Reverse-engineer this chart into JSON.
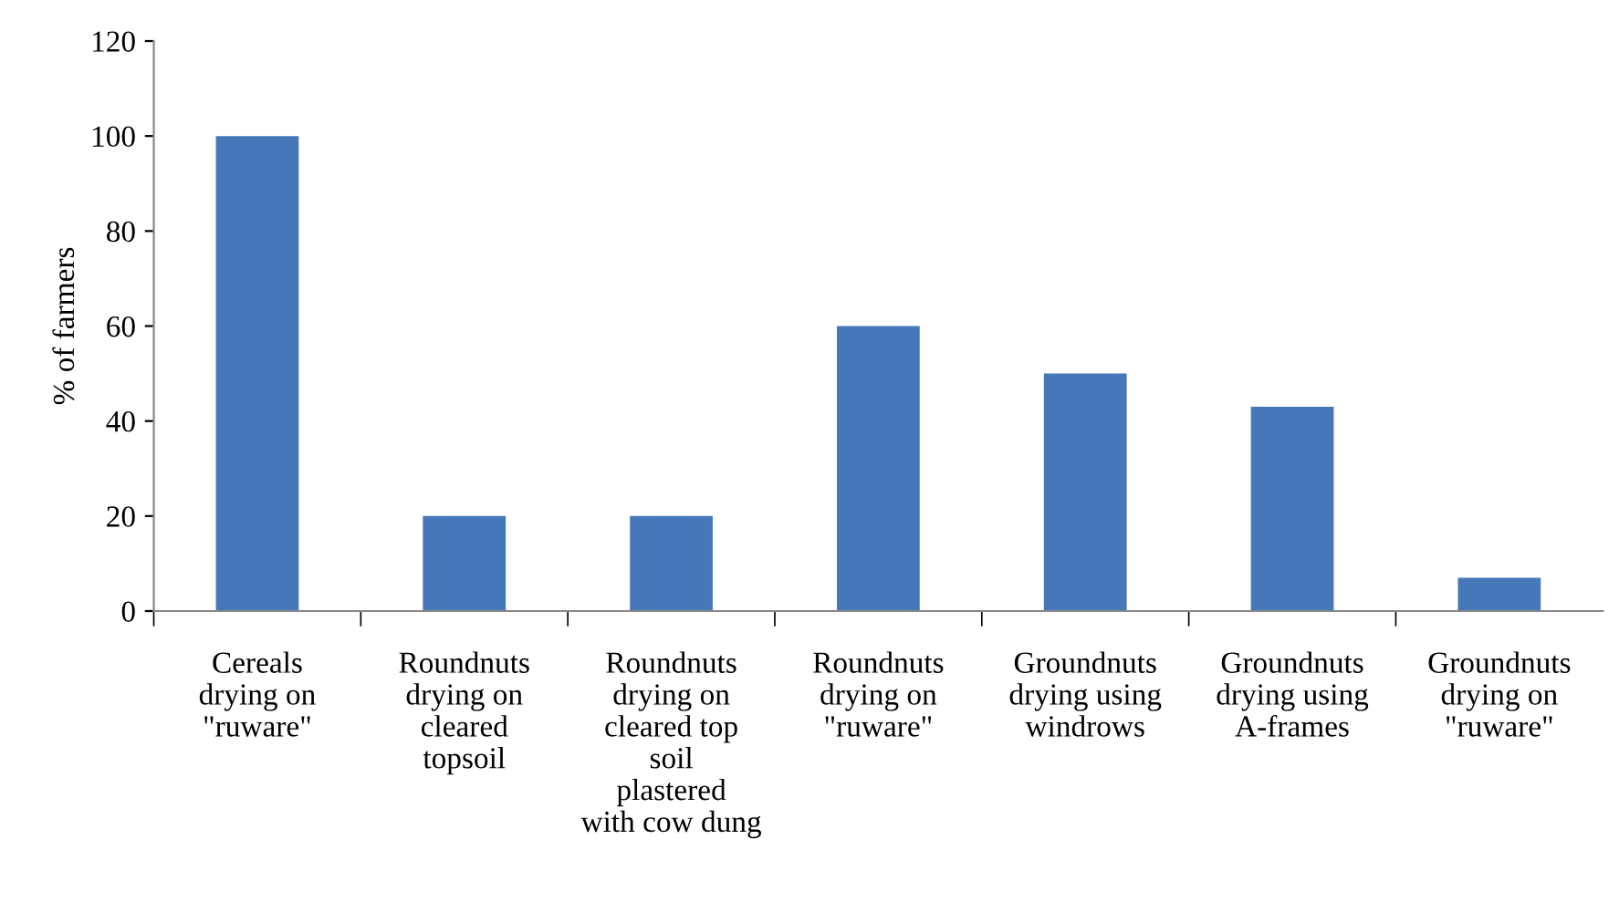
{
  "chart_data": {
    "type": "bar",
    "ylabel": "% of farmers",
    "categories": [
      "Cereals drying on \"ruware\"",
      "Roundnuts drying on cleared topsoil",
      "Roundnuts drying on cleared top soil plastered with cow dung",
      "Roundnuts drying on \"ruware\"",
      "Groundnuts drying using windrows",
      "Groundnuts drying using A-frames",
      "Groundnuts drying on \"ruware\""
    ],
    "values": [
      100,
      20,
      20,
      60,
      50,
      43,
      7
    ],
    "color": "#4677b8",
    "ylim": [
      0,
      120
    ],
    "yticks": [
      0,
      20,
      40,
      60,
      80,
      100,
      120
    ],
    "grid": false,
    "legend": false
  }
}
